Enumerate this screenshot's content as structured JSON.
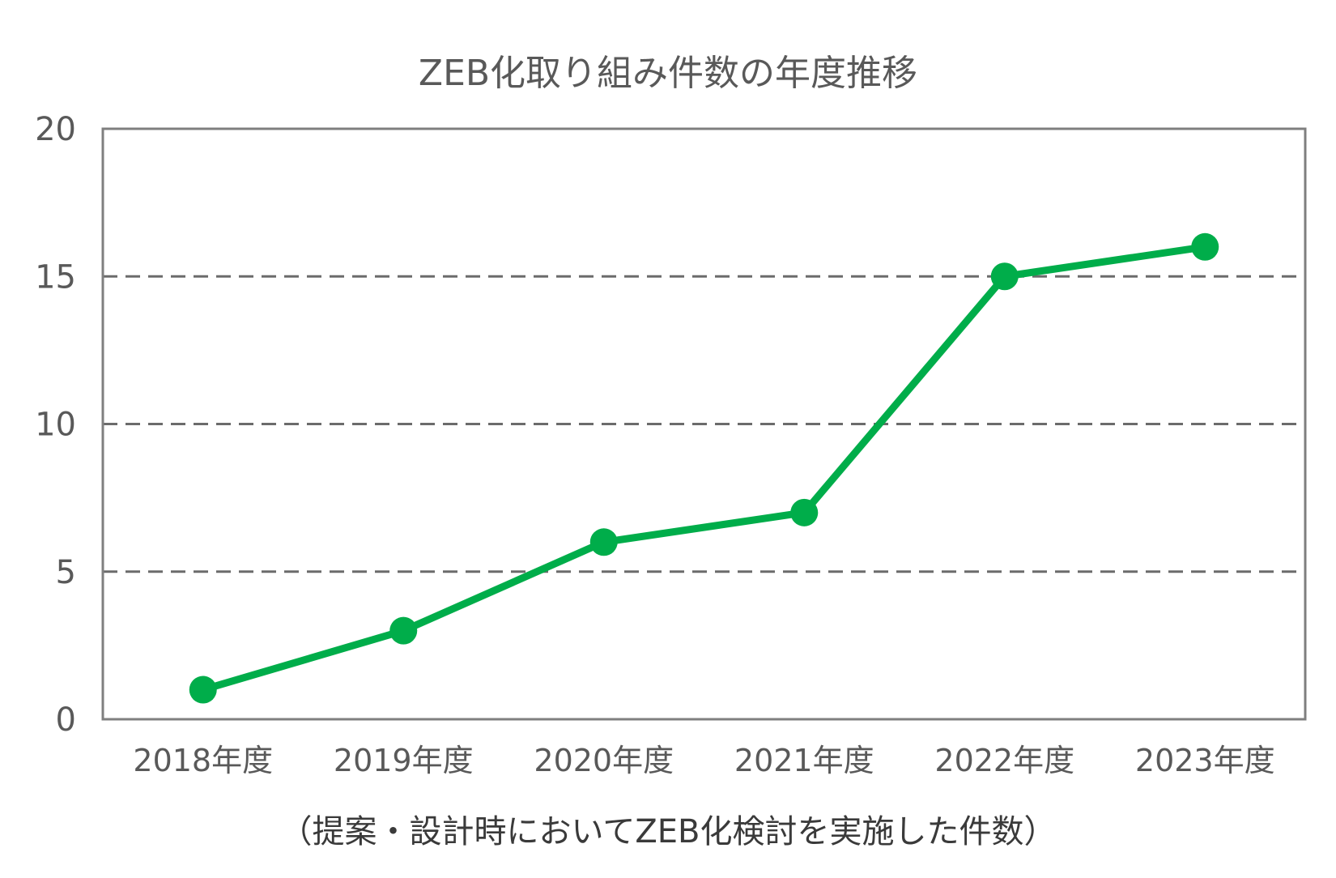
{
  "chart_data": {
    "type": "line",
    "title": "ZEB化取り組み件数の年度推移",
    "note": "（提案・設計時においてZEB化検討を実施した件数）",
    "categories": [
      "2018年度",
      "2019年度",
      "2020年度",
      "2021年度",
      "2022年度",
      "2023年度"
    ],
    "series": [
      {
        "values": [
          1,
          3,
          6,
          7,
          15,
          16
        ]
      }
    ],
    "ylim": [
      0,
      20
    ],
    "yticks": [
      "0",
      "5",
      "10",
      "15",
      "20"
    ],
    "ytick_values": [
      0,
      5,
      10,
      15,
      20
    ],
    "grid": "horizontal dashed",
    "legend": "none",
    "colors": {
      "line": "#00AD4A",
      "grid": "#6b6b6b",
      "axis": "#7f7f7f",
      "text": "#595959"
    }
  }
}
